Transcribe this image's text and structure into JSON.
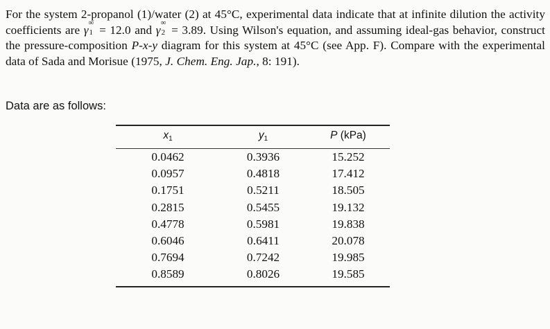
{
  "problem": {
    "part1": "For the system 2-propanol (1)/water (2) at 45°C, experimental data indicate that at infinite dilution the activity coefficients are ",
    "gamma_symbol": "γ",
    "gamma1_sup": "∞",
    "gamma1_sub": "1",
    "gamma1_eq": " = 12.0 and ",
    "gamma2_sup": "∞",
    "gamma2_sub": "2",
    "gamma2_eq": " = 3.89. Using Wilson's equation, and assuming ideal-gas behavior, construct the pressure-composition ",
    "diagram_name": "P-x-y",
    "part3": " diagram for this system at 45°C (see App. F). Compare with the experimental data of Sada and Morisue (1975, ",
    "journal": "J. Chem. Eng. Jap.",
    "part4": ", 8: 191)."
  },
  "data_intro": "Data are as follows:",
  "table": {
    "headers": {
      "x_var": "x",
      "x_sub": "1",
      "y_var": "y",
      "y_sub": "1",
      "p_var": "P",
      "p_unit": " (kPa)"
    },
    "rows": [
      [
        "0.0462",
        "0.3936",
        "15.252"
      ],
      [
        "0.0957",
        "0.4818",
        "17.412"
      ],
      [
        "0.1751",
        "0.5211",
        "18.505"
      ],
      [
        "0.2815",
        "0.5455",
        "19.132"
      ],
      [
        "0.4778",
        "0.5981",
        "19.838"
      ],
      [
        "0.6046",
        "0.6411",
        "20.078"
      ],
      [
        "0.7694",
        "0.7242",
        "19.985"
      ],
      [
        "0.8589",
        "0.8026",
        "19.585"
      ]
    ]
  }
}
